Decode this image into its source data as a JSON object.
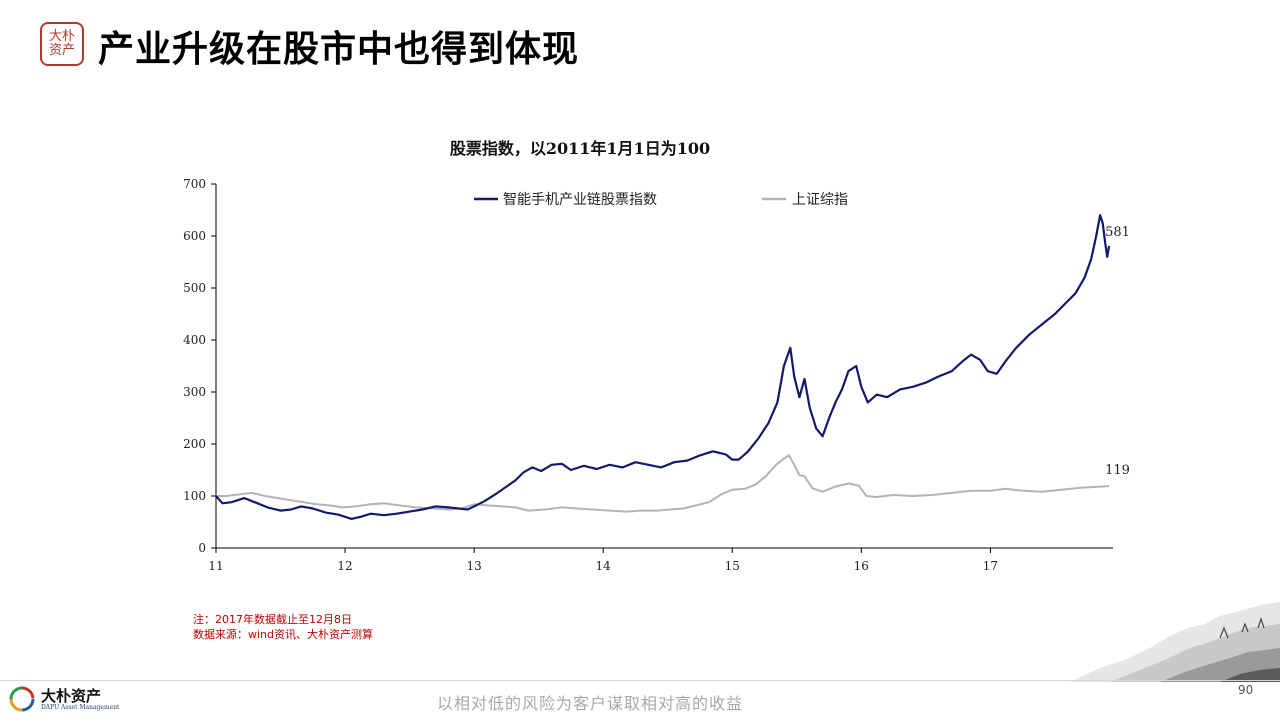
{
  "header": {
    "logo_text": "大朴资产",
    "title": "产业升级在股市中也得到体现"
  },
  "chart_data": {
    "type": "line",
    "title": "股票指数，以2011年1月1日为100",
    "xlabel": "",
    "ylabel": "",
    "ylim": [
      0,
      700
    ],
    "yticks": [
      0,
      100,
      200,
      300,
      400,
      500,
      600,
      700
    ],
    "xlim": [
      2011.0,
      2017.95
    ],
    "xticks": [
      {
        "value": 2011,
        "label": "11"
      },
      {
        "value": 2012,
        "label": "12"
      },
      {
        "value": 2013,
        "label": "13"
      },
      {
        "value": 2014,
        "label": "14"
      },
      {
        "value": 2015,
        "label": "15"
      },
      {
        "value": 2016,
        "label": "16"
      },
      {
        "value": 2017,
        "label": "17"
      }
    ],
    "grid": false,
    "legend_position": "top",
    "series": [
      {
        "name": "智能手机产业链股票指数",
        "color": "#14196a",
        "end_label": "581",
        "points": [
          [
            2011.0,
            100
          ],
          [
            2011.05,
            86
          ],
          [
            2011.12,
            88
          ],
          [
            2011.22,
            96
          ],
          [
            2011.3,
            88
          ],
          [
            2011.4,
            78
          ],
          [
            2011.5,
            72
          ],
          [
            2011.58,
            74
          ],
          [
            2011.66,
            80
          ],
          [
            2011.75,
            76
          ],
          [
            2011.85,
            68
          ],
          [
            2011.95,
            64
          ],
          [
            2012.0,
            60
          ],
          [
            2012.05,
            56
          ],
          [
            2012.12,
            60
          ],
          [
            2012.2,
            66
          ],
          [
            2012.3,
            63
          ],
          [
            2012.4,
            66
          ],
          [
            2012.5,
            70
          ],
          [
            2012.6,
            74
          ],
          [
            2012.7,
            80
          ],
          [
            2012.8,
            78
          ],
          [
            2012.88,
            76
          ],
          [
            2012.95,
            74
          ],
          [
            2013.0,
            80
          ],
          [
            2013.08,
            90
          ],
          [
            2013.18,
            106
          ],
          [
            2013.25,
            118
          ],
          [
            2013.32,
            130
          ],
          [
            2013.38,
            145
          ],
          [
            2013.45,
            155
          ],
          [
            2013.52,
            148
          ],
          [
            2013.6,
            160
          ],
          [
            2013.68,
            162
          ],
          [
            2013.75,
            150
          ],
          [
            2013.85,
            158
          ],
          [
            2013.95,
            152
          ],
          [
            2014.05,
            160
          ],
          [
            2014.15,
            155
          ],
          [
            2014.25,
            165
          ],
          [
            2014.35,
            160
          ],
          [
            2014.45,
            155
          ],
          [
            2014.55,
            165
          ],
          [
            2014.65,
            168
          ],
          [
            2014.75,
            178
          ],
          [
            2014.85,
            186
          ],
          [
            2014.95,
            180
          ],
          [
            2015.0,
            170
          ],
          [
            2015.05,
            170
          ],
          [
            2015.12,
            185
          ],
          [
            2015.2,
            210
          ],
          [
            2015.28,
            240
          ],
          [
            2015.35,
            280
          ],
          [
            2015.4,
            350
          ],
          [
            2015.45,
            385
          ],
          [
            2015.48,
            330
          ],
          [
            2015.52,
            290
          ],
          [
            2015.56,
            325
          ],
          [
            2015.6,
            270
          ],
          [
            2015.65,
            230
          ],
          [
            2015.7,
            215
          ],
          [
            2015.75,
            250
          ],
          [
            2015.8,
            280
          ],
          [
            2015.85,
            305
          ],
          [
            2015.9,
            340
          ],
          [
            2015.96,
            350
          ],
          [
            2016.0,
            310
          ],
          [
            2016.05,
            280
          ],
          [
            2016.12,
            295
          ],
          [
            2016.2,
            290
          ],
          [
            2016.3,
            305
          ],
          [
            2016.4,
            310
          ],
          [
            2016.5,
            318
          ],
          [
            2016.6,
            330
          ],
          [
            2016.7,
            340
          ],
          [
            2016.78,
            358
          ],
          [
            2016.85,
            372
          ],
          [
            2016.92,
            362
          ],
          [
            2016.98,
            340
          ],
          [
            2017.05,
            335
          ],
          [
            2017.12,
            360
          ],
          [
            2017.2,
            385
          ],
          [
            2017.3,
            410
          ],
          [
            2017.4,
            430
          ],
          [
            2017.5,
            450
          ],
          [
            2017.58,
            470
          ],
          [
            2017.66,
            490
          ],
          [
            2017.73,
            520
          ],
          [
            2017.78,
            555
          ],
          [
            2017.82,
            600
          ],
          [
            2017.85,
            640
          ],
          [
            2017.87,
            625
          ],
          [
            2017.89,
            585
          ],
          [
            2017.905,
            560
          ],
          [
            2017.92,
            581
          ]
        ]
      },
      {
        "name": "上证综指",
        "color": "#b4b4b4",
        "end_label": "119",
        "points": [
          [
            2011.0,
            100
          ],
          [
            2011.08,
            100
          ],
          [
            2011.18,
            103
          ],
          [
            2011.28,
            106
          ],
          [
            2011.38,
            100
          ],
          [
            2011.48,
            96
          ],
          [
            2011.58,
            92
          ],
          [
            2011.68,
            88
          ],
          [
            2011.78,
            84
          ],
          [
            2011.88,
            82
          ],
          [
            2011.98,
            78
          ],
          [
            2012.08,
            80
          ],
          [
            2012.2,
            84
          ],
          [
            2012.3,
            86
          ],
          [
            2012.42,
            82
          ],
          [
            2012.55,
            78
          ],
          [
            2012.68,
            76
          ],
          [
            2012.8,
            74
          ],
          [
            2012.9,
            76
          ],
          [
            2013.0,
            84
          ],
          [
            2013.1,
            82
          ],
          [
            2013.22,
            80
          ],
          [
            2013.32,
            78
          ],
          [
            2013.42,
            72
          ],
          [
            2013.55,
            74
          ],
          [
            2013.68,
            78
          ],
          [
            2013.8,
            76
          ],
          [
            2013.92,
            74
          ],
          [
            2014.05,
            72
          ],
          [
            2014.18,
            70
          ],
          [
            2014.3,
            72
          ],
          [
            2014.42,
            72
          ],
          [
            2014.52,
            74
          ],
          [
            2014.62,
            76
          ],
          [
            2014.72,
            82
          ],
          [
            2014.82,
            88
          ],
          [
            2014.92,
            104
          ],
          [
            2015.0,
            112
          ],
          [
            2015.1,
            114
          ],
          [
            2015.18,
            122
          ],
          [
            2015.26,
            138
          ],
          [
            2015.34,
            160
          ],
          [
            2015.4,
            172
          ],
          [
            2015.44,
            178
          ],
          [
            2015.48,
            160
          ],
          [
            2015.52,
            140
          ],
          [
            2015.56,
            138
          ],
          [
            2015.62,
            115
          ],
          [
            2015.7,
            108
          ],
          [
            2015.8,
            118
          ],
          [
            2015.9,
            124
          ],
          [
            2015.98,
            120
          ],
          [
            2016.04,
            100
          ],
          [
            2016.12,
            98
          ],
          [
            2016.25,
            102
          ],
          [
            2016.4,
            100
          ],
          [
            2016.55,
            102
          ],
          [
            2016.7,
            106
          ],
          [
            2016.85,
            110
          ],
          [
            2017.0,
            110
          ],
          [
            2017.12,
            114
          ],
          [
            2017.25,
            110
          ],
          [
            2017.4,
            108
          ],
          [
            2017.55,
            112
          ],
          [
            2017.7,
            116
          ],
          [
            2017.85,
            118
          ],
          [
            2017.92,
            119
          ]
        ]
      }
    ]
  },
  "footnote": {
    "line1": "注：2017年数据截止至12月8日",
    "line2": "数据来源：wind资讯、大朴资产测算"
  },
  "footer": {
    "brand_name": "大朴资产",
    "brand_sub": "DAPU Asset Management",
    "slogan": "以相对低的风险为客户谋取相对高的收益",
    "page_number": "90"
  }
}
